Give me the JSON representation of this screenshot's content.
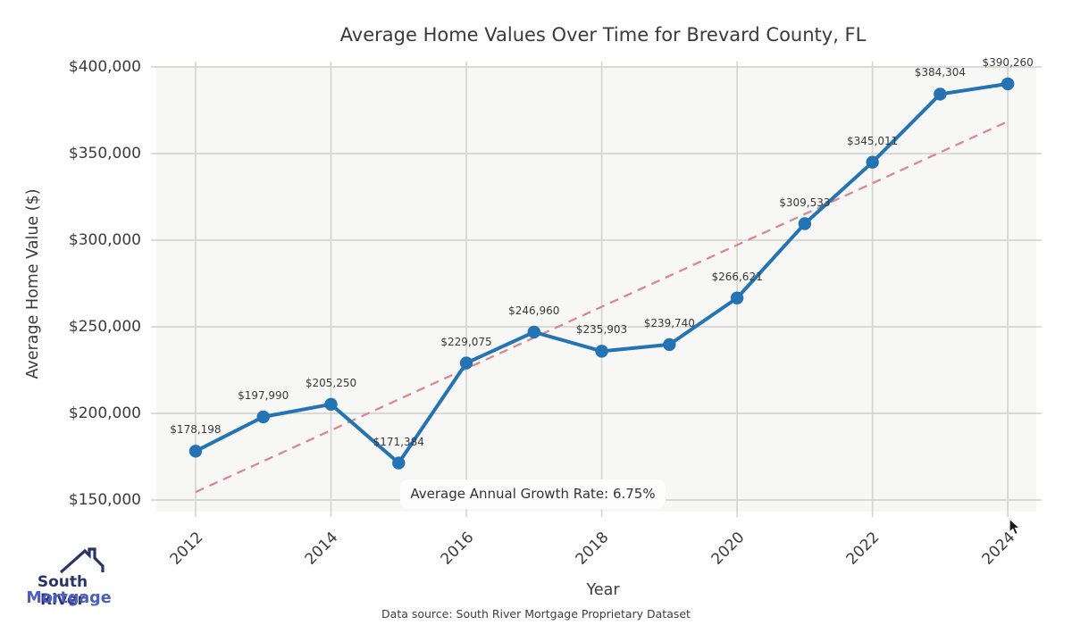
{
  "chart_data": {
    "type": "line",
    "title": "Average Home Values Over Time for Brevard County, FL",
    "xlabel": "Year",
    "ylabel": "Average Home Value ($)",
    "x": [
      2012,
      2013,
      2014,
      2015,
      2016,
      2017,
      2018,
      2019,
      2020,
      2021,
      2022,
      2023,
      2024
    ],
    "series": [
      {
        "name": "Average Home Value",
        "values": [
          178198,
          197990,
          205250,
          171384,
          229075,
          246960,
          235903,
          239740,
          266621,
          309533,
          345011,
          384304,
          390260
        ]
      }
    ],
    "point_label_format": "$#,###",
    "xticks": [
      2012,
      2014,
      2016,
      2018,
      2020,
      2022,
      2024
    ],
    "yticks": [
      150000,
      200000,
      250000,
      300000,
      350000,
      400000
    ],
    "xlim": [
      2011.42,
      2024.42
    ],
    "ylim": [
      143300,
      400000
    ],
    "grid": true,
    "legend": "none",
    "trend_line": {
      "style": "dashed",
      "x": [
        2012,
        2024
      ],
      "values": [
        154570,
        368542
      ]
    },
    "annotation": "Average Annual Growth Rate: 6.75%"
  },
  "footer": {
    "source": "Data source: South River Mortgage Proprietary Dataset"
  },
  "logo": {
    "line1": "South River",
    "line2": "Mortgage"
  },
  "colors": {
    "line": "#2374b5",
    "marker": "#2374b5",
    "trend": "#d9838b",
    "grid": "#d5d5d3",
    "plot_bg": "#f7f7f5",
    "annotation_bg": "#fdfdfd",
    "title_text": "#3a3a3a",
    "logo_navy": "#2a3468",
    "logo_blue": "#4a5ec5"
  }
}
